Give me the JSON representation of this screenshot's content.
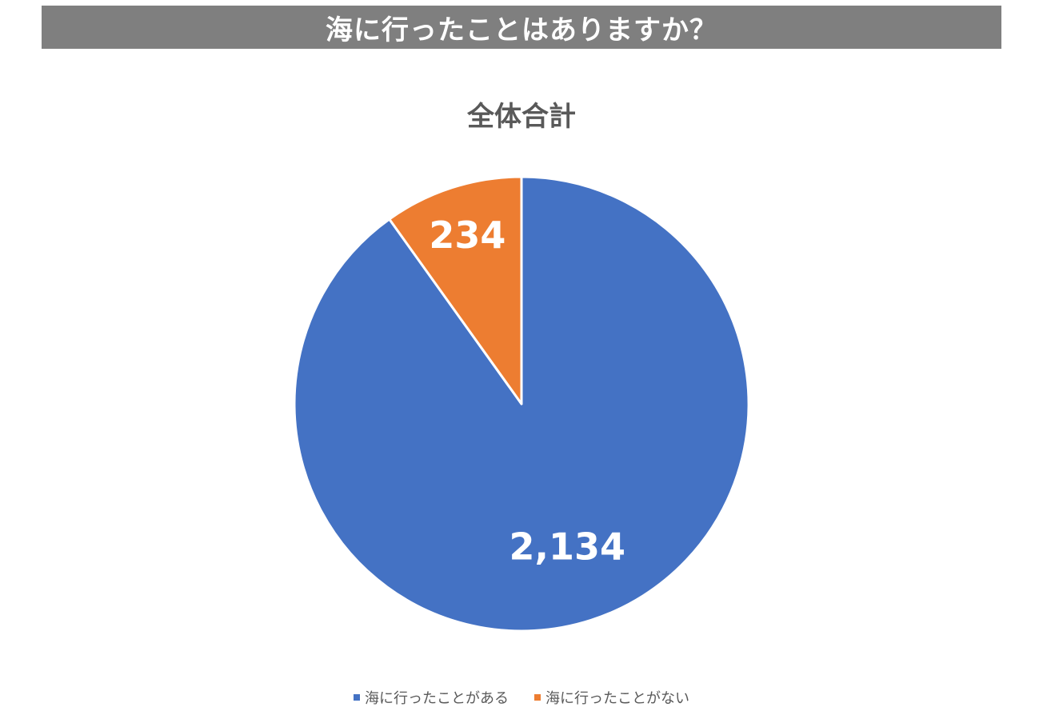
{
  "header": {
    "title": "海に行ったことはありますか？",
    "background": "#7f7f7f"
  },
  "chart_data": {
    "type": "pie",
    "title": "全体合計",
    "slices": [
      {
        "label": "海に行ったことがある",
        "value": 2134,
        "display": "2,134",
        "color": "#4472c4"
      },
      {
        "label": "海に行ったことがない",
        "value": 234,
        "display": "234",
        "color": "#ed7d31"
      }
    ],
    "start": "12 o'clock",
    "direction": "clockwise",
    "data_labels": "inside",
    "legend_position": "bottom"
  }
}
